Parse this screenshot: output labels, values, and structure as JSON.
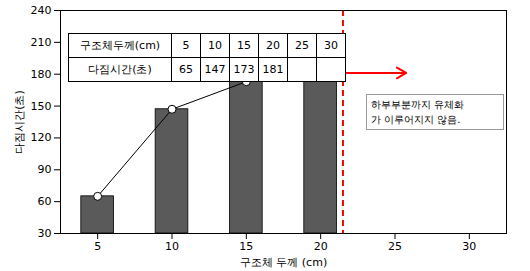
{
  "chart_data": {
    "type": "bar",
    "categories": [
      5,
      10,
      15,
      20,
      25,
      30
    ],
    "series": [
      {
        "type": "bar",
        "color": "#5a5a5a",
        "values": [
          65,
          147,
          173,
          181,
          null,
          null
        ]
      },
      {
        "type": "line",
        "color": "#000000",
        "marker": "circle",
        "values": [
          65,
          147,
          173,
          181,
          null,
          null
        ]
      }
    ],
    "x_label": "구조체 두께 (cm)",
    "y_label": "다짐시간(초)",
    "ylim": [
      30,
      240
    ],
    "yticks": [
      30,
      60,
      90,
      120,
      150,
      180,
      210,
      240
    ],
    "grid": false,
    "table": {
      "row_labels": [
        "구조체두께(cm)",
        "다짐시간(초)"
      ]
    },
    "annotation": {
      "text": [
        "하부부분까지 유체화",
        "가 이루어지지 않음."
      ],
      "color": "#ff0000"
    }
  }
}
